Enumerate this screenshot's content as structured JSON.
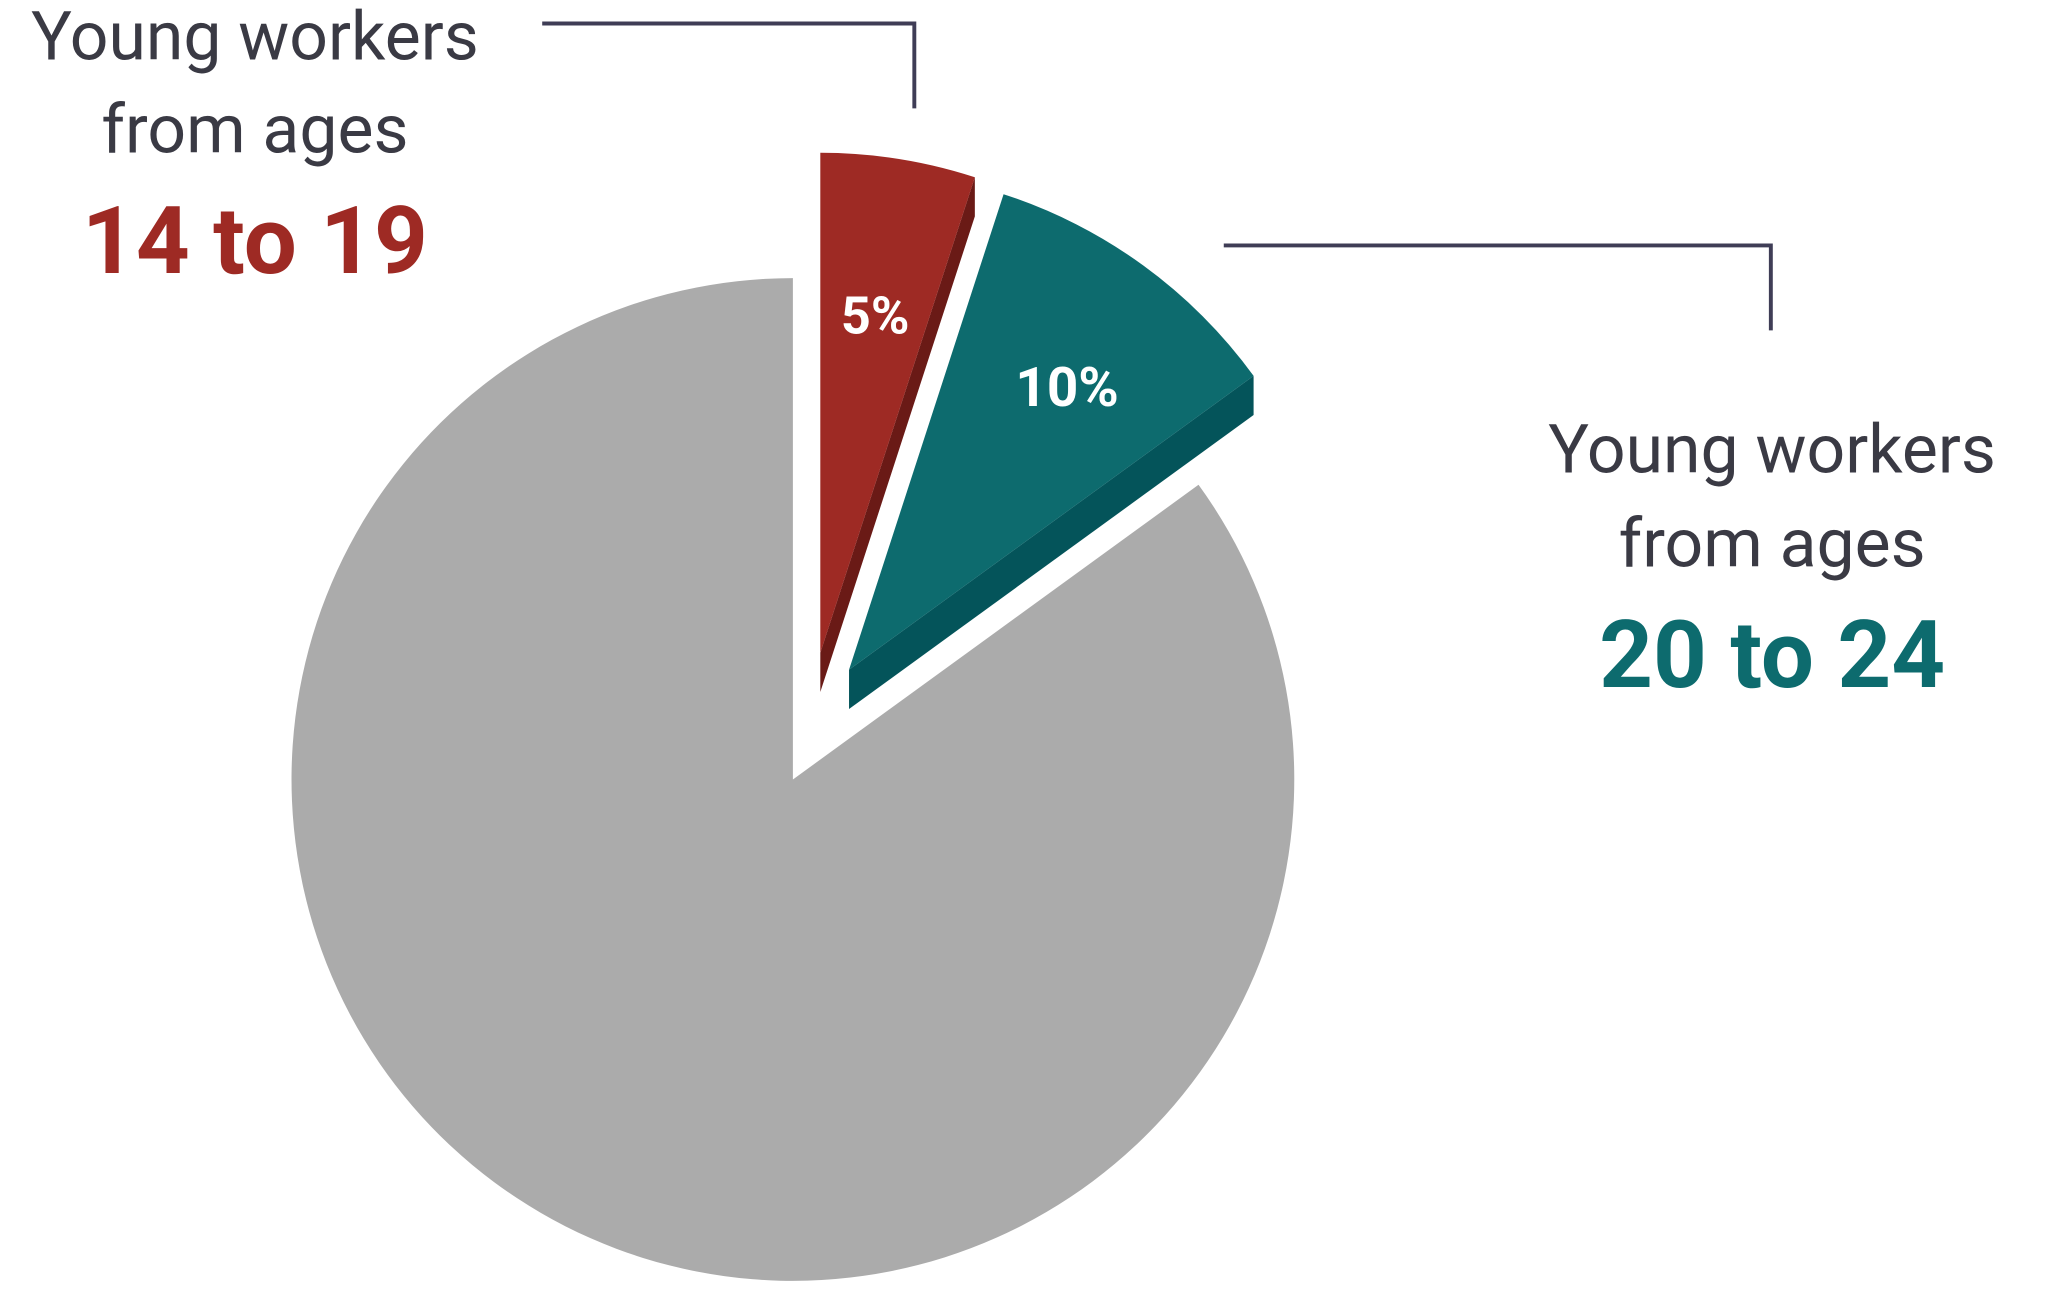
{
  "chart_data": {
    "type": "pie",
    "categories": [
      "14 to 19",
      "20 to 24",
      null
    ],
    "values": [
      5,
      10,
      85
    ],
    "value_labels": [
      "5%",
      "10%",
      null
    ],
    "colors": [
      "#9e2a24",
      "#0d6b6e",
      "#ababab"
    ],
    "annotations": [
      [
        "Young workers",
        "from ages"
      ],
      [
        "Young workers",
        "from ages"
      ]
    ]
  }
}
